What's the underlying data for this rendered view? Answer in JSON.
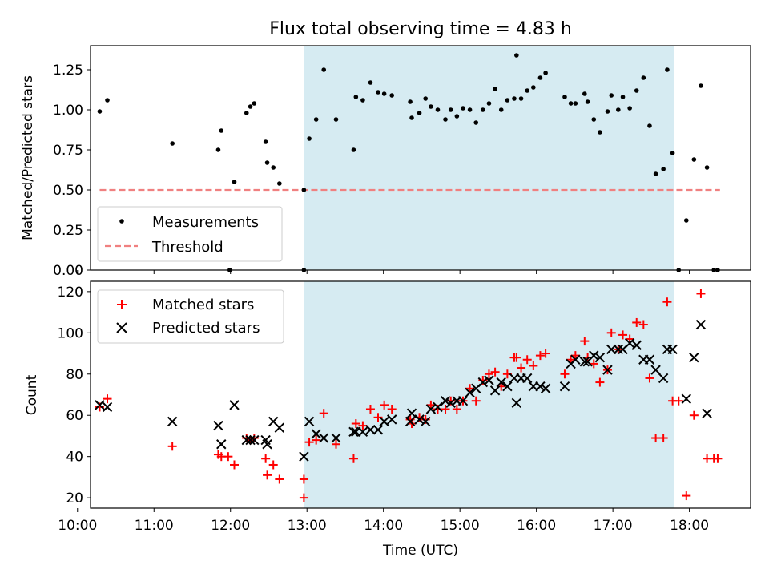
{
  "title": "Flux total observing time = 4.83 h",
  "chart_data": [
    {
      "type": "scatter",
      "panel": "top",
      "ylabel": "Matched/Predicted stars",
      "xlabel": "",
      "xlim": [
        10.17,
        18.8
      ],
      "ylim": [
        0,
        1.4
      ],
      "yticks": [
        0.0,
        0.25,
        0.5,
        0.75,
        1.0,
        1.25
      ],
      "ytick_labels": [
        "0.00",
        "0.25",
        "0.50",
        "0.75",
        "1.00",
        "1.25"
      ],
      "shaded_span": [
        12.96,
        17.8
      ],
      "legend_position": "lower-left",
      "series": [
        {
          "name": "Measurements",
          "marker": "dot",
          "color": "#000000",
          "points": [
            [
              10.29,
              0.99
            ],
            [
              10.39,
              1.06
            ],
            [
              11.24,
              0.79
            ],
            [
              11.84,
              0.75
            ],
            [
              11.88,
              0.87
            ],
            [
              11.99,
              0.0
            ],
            [
              12.05,
              0.55
            ],
            [
              12.21,
              0.98
            ],
            [
              12.26,
              1.02
            ],
            [
              12.31,
              1.04
            ],
            [
              12.46,
              0.8
            ],
            [
              12.48,
              0.67
            ],
            [
              12.56,
              0.64
            ],
            [
              12.64,
              0.54
            ],
            [
              12.96,
              0.5
            ],
            [
              12.96,
              0.0
            ],
            [
              13.03,
              0.82
            ],
            [
              13.12,
              0.94
            ],
            [
              13.22,
              1.25
            ],
            [
              13.38,
              0.94
            ],
            [
              13.61,
              0.75
            ],
            [
              13.64,
              1.08
            ],
            [
              13.73,
              1.06
            ],
            [
              13.83,
              1.17
            ],
            [
              13.93,
              1.11
            ],
            [
              14.01,
              1.1
            ],
            [
              14.11,
              1.09
            ],
            [
              14.35,
              1.05
            ],
            [
              14.37,
              0.95
            ],
            [
              14.47,
              0.98
            ],
            [
              14.55,
              1.07
            ],
            [
              14.62,
              1.02
            ],
            [
              14.71,
              1.0
            ],
            [
              14.81,
              0.94
            ],
            [
              14.88,
              1.0
            ],
            [
              14.96,
              0.96
            ],
            [
              15.04,
              1.01
            ],
            [
              15.13,
              1.0
            ],
            [
              15.21,
              0.92
            ],
            [
              15.3,
              1.0
            ],
            [
              15.38,
              1.04
            ],
            [
              15.46,
              1.13
            ],
            [
              15.54,
              1.0
            ],
            [
              15.62,
              1.06
            ],
            [
              15.71,
              1.07
            ],
            [
              15.74,
              1.34
            ],
            [
              15.8,
              1.07
            ],
            [
              15.88,
              1.12
            ],
            [
              15.96,
              1.14
            ],
            [
              16.05,
              1.2
            ],
            [
              16.12,
              1.23
            ],
            [
              16.37,
              1.08
            ],
            [
              16.45,
              1.04
            ],
            [
              16.51,
              1.04
            ],
            [
              16.63,
              1.1
            ],
            [
              16.67,
              1.05
            ],
            [
              16.75,
              0.94
            ],
            [
              16.83,
              0.86
            ],
            [
              16.93,
              0.99
            ],
            [
              16.98,
              1.09
            ],
            [
              17.07,
              1.0
            ],
            [
              17.13,
              1.08
            ],
            [
              17.22,
              1.01
            ],
            [
              17.31,
              1.12
            ],
            [
              17.4,
              1.2
            ],
            [
              17.48,
              0.9
            ],
            [
              17.56,
              0.6
            ],
            [
              17.66,
              0.63
            ],
            [
              17.71,
              1.25
            ],
            [
              17.78,
              0.73
            ],
            [
              17.86,
              0.0
            ],
            [
              17.96,
              0.31
            ],
            [
              18.06,
              0.69
            ],
            [
              18.15,
              1.15
            ],
            [
              18.23,
              0.64
            ],
            [
              18.32,
              0.0
            ],
            [
              18.37,
              0.0
            ]
          ]
        },
        {
          "name": "Threshold",
          "marker": "dashed-line",
          "color": "#f08080",
          "x": [
            10.29,
            18.4
          ],
          "y": [
            0.5,
            0.5
          ]
        }
      ]
    },
    {
      "type": "scatter",
      "panel": "bottom",
      "ylabel": "Count",
      "xlabel": "Time (UTC)",
      "xlim": [
        10.17,
        18.8
      ],
      "ylim": [
        15,
        125
      ],
      "yticks": [
        20,
        40,
        60,
        80,
        100,
        120
      ],
      "ytick_labels": [
        "20",
        "40",
        "60",
        "80",
        "100",
        "120"
      ],
      "xticks": [
        10,
        11,
        12,
        13,
        14,
        15,
        16,
        17,
        18
      ],
      "xtick_labels": [
        "10:00",
        "11:00",
        "12:00",
        "13:00",
        "14:00",
        "15:00",
        "16:00",
        "17:00",
        "18:00"
      ],
      "shaded_span": [
        12.96,
        17.8
      ],
      "legend_position": "top-left",
      "series": [
        {
          "name": "Matched stars",
          "marker": "plus",
          "color": "#ff0000",
          "points": [
            [
              10.29,
              64
            ],
            [
              10.39,
              68
            ],
            [
              11.24,
              45
            ],
            [
              11.84,
              41
            ],
            [
              11.88,
              40
            ],
            [
              11.97,
              40
            ],
            [
              12.05,
              36
            ],
            [
              12.21,
              49
            ],
            [
              12.26,
              48
            ],
            [
              12.31,
              49
            ],
            [
              12.46,
              39
            ],
            [
              12.48,
              31
            ],
            [
              12.56,
              36
            ],
            [
              12.64,
              29
            ],
            [
              12.96,
              29
            ],
            [
              12.96,
              20
            ],
            [
              13.03,
              47
            ],
            [
              13.12,
              48
            ],
            [
              13.22,
              61
            ],
            [
              13.38,
              46
            ],
            [
              13.61,
              39
            ],
            [
              13.64,
              56
            ],
            [
              13.73,
              55
            ],
            [
              13.83,
              63
            ],
            [
              13.93,
              59
            ],
            [
              14.01,
              65
            ],
            [
              14.11,
              63
            ],
            [
              14.35,
              58
            ],
            [
              14.37,
              56
            ],
            [
              14.47,
              59
            ],
            [
              14.55,
              58
            ],
            [
              14.62,
              65
            ],
            [
              14.71,
              63
            ],
            [
              14.81,
              63
            ],
            [
              14.88,
              67
            ],
            [
              14.96,
              63
            ],
            [
              15.04,
              67
            ],
            [
              15.13,
              73
            ],
            [
              15.21,
              67
            ],
            [
              15.3,
              77
            ],
            [
              15.38,
              80
            ],
            [
              15.46,
              81
            ],
            [
              15.54,
              74
            ],
            [
              15.62,
              80
            ],
            [
              15.71,
              88
            ],
            [
              15.74,
              88
            ],
            [
              15.8,
              83
            ],
            [
              15.88,
              87
            ],
            [
              15.96,
              84
            ],
            [
              16.05,
              89
            ],
            [
              16.12,
              90
            ],
            [
              16.37,
              80
            ],
            [
              16.45,
              87
            ],
            [
              16.51,
              89
            ],
            [
              16.63,
              96
            ],
            [
              16.67,
              88
            ],
            [
              16.75,
              85
            ],
            [
              16.83,
              76
            ],
            [
              16.93,
              82
            ],
            [
              16.98,
              100
            ],
            [
              17.07,
              92
            ],
            [
              17.13,
              99
            ],
            [
              17.22,
              97
            ],
            [
              17.31,
              105
            ],
            [
              17.4,
              104
            ],
            [
              17.48,
              78
            ],
            [
              17.56,
              49
            ],
            [
              17.66,
              49
            ],
            [
              17.71,
              115
            ],
            [
              17.78,
              67
            ],
            [
              17.86,
              67
            ],
            [
              17.96,
              21
            ],
            [
              18.06,
              60
            ],
            [
              18.15,
              119
            ],
            [
              18.23,
              39
            ],
            [
              18.32,
              39
            ],
            [
              18.37,
              39
            ]
          ]
        },
        {
          "name": "Predicted stars",
          "marker": "x",
          "color": "#000000",
          "points": [
            [
              10.29,
              65
            ],
            [
              10.39,
              64
            ],
            [
              11.24,
              57
            ],
            [
              11.84,
              55
            ],
            [
              11.88,
              46
            ],
            [
              12.05,
              65
            ],
            [
              12.21,
              48
            ],
            [
              12.26,
              48
            ],
            [
              12.31,
              48
            ],
            [
              12.46,
              48
            ],
            [
              12.48,
              46
            ],
            [
              12.56,
              57
            ],
            [
              12.64,
              54
            ],
            [
              12.96,
              40
            ],
            [
              13.03,
              57
            ],
            [
              13.12,
              51
            ],
            [
              13.22,
              49
            ],
            [
              13.38,
              49
            ],
            [
              13.61,
              52
            ],
            [
              13.64,
              52
            ],
            [
              13.73,
              52
            ],
            [
              13.83,
              53
            ],
            [
              13.93,
              53
            ],
            [
              14.01,
              57
            ],
            [
              14.11,
              58
            ],
            [
              14.35,
              57
            ],
            [
              14.37,
              61
            ],
            [
              14.47,
              58
            ],
            [
              14.55,
              57
            ],
            [
              14.62,
              63
            ],
            [
              14.71,
              64
            ],
            [
              14.81,
              67
            ],
            [
              14.88,
              66
            ],
            [
              14.96,
              67
            ],
            [
              15.04,
              67
            ],
            [
              15.13,
              71
            ],
            [
              15.21,
              73
            ],
            [
              15.3,
              76
            ],
            [
              15.38,
              77
            ],
            [
              15.46,
              72
            ],
            [
              15.54,
              76
            ],
            [
              15.62,
              74
            ],
            [
              15.71,
              78
            ],
            [
              15.74,
              66
            ],
            [
              15.8,
              78
            ],
            [
              15.88,
              78
            ],
            [
              15.96,
              74
            ],
            [
              16.05,
              74
            ],
            [
              16.12,
              73
            ],
            [
              16.37,
              74
            ],
            [
              16.45,
              85
            ],
            [
              16.51,
              87
            ],
            [
              16.63,
              86
            ],
            [
              16.67,
              86
            ],
            [
              16.75,
              89
            ],
            [
              16.83,
              88
            ],
            [
              16.93,
              82
            ],
            [
              16.98,
              92
            ],
            [
              17.07,
              92
            ],
            [
              17.13,
              92
            ],
            [
              17.22,
              95
            ],
            [
              17.31,
              94
            ],
            [
              17.4,
              87
            ],
            [
              17.48,
              87
            ],
            [
              17.56,
              82
            ],
            [
              17.66,
              78
            ],
            [
              17.71,
              92
            ],
            [
              17.78,
              92
            ],
            [
              17.96,
              68
            ],
            [
              18.06,
              88
            ],
            [
              18.15,
              104
            ],
            [
              18.23,
              61
            ]
          ]
        }
      ]
    }
  ]
}
